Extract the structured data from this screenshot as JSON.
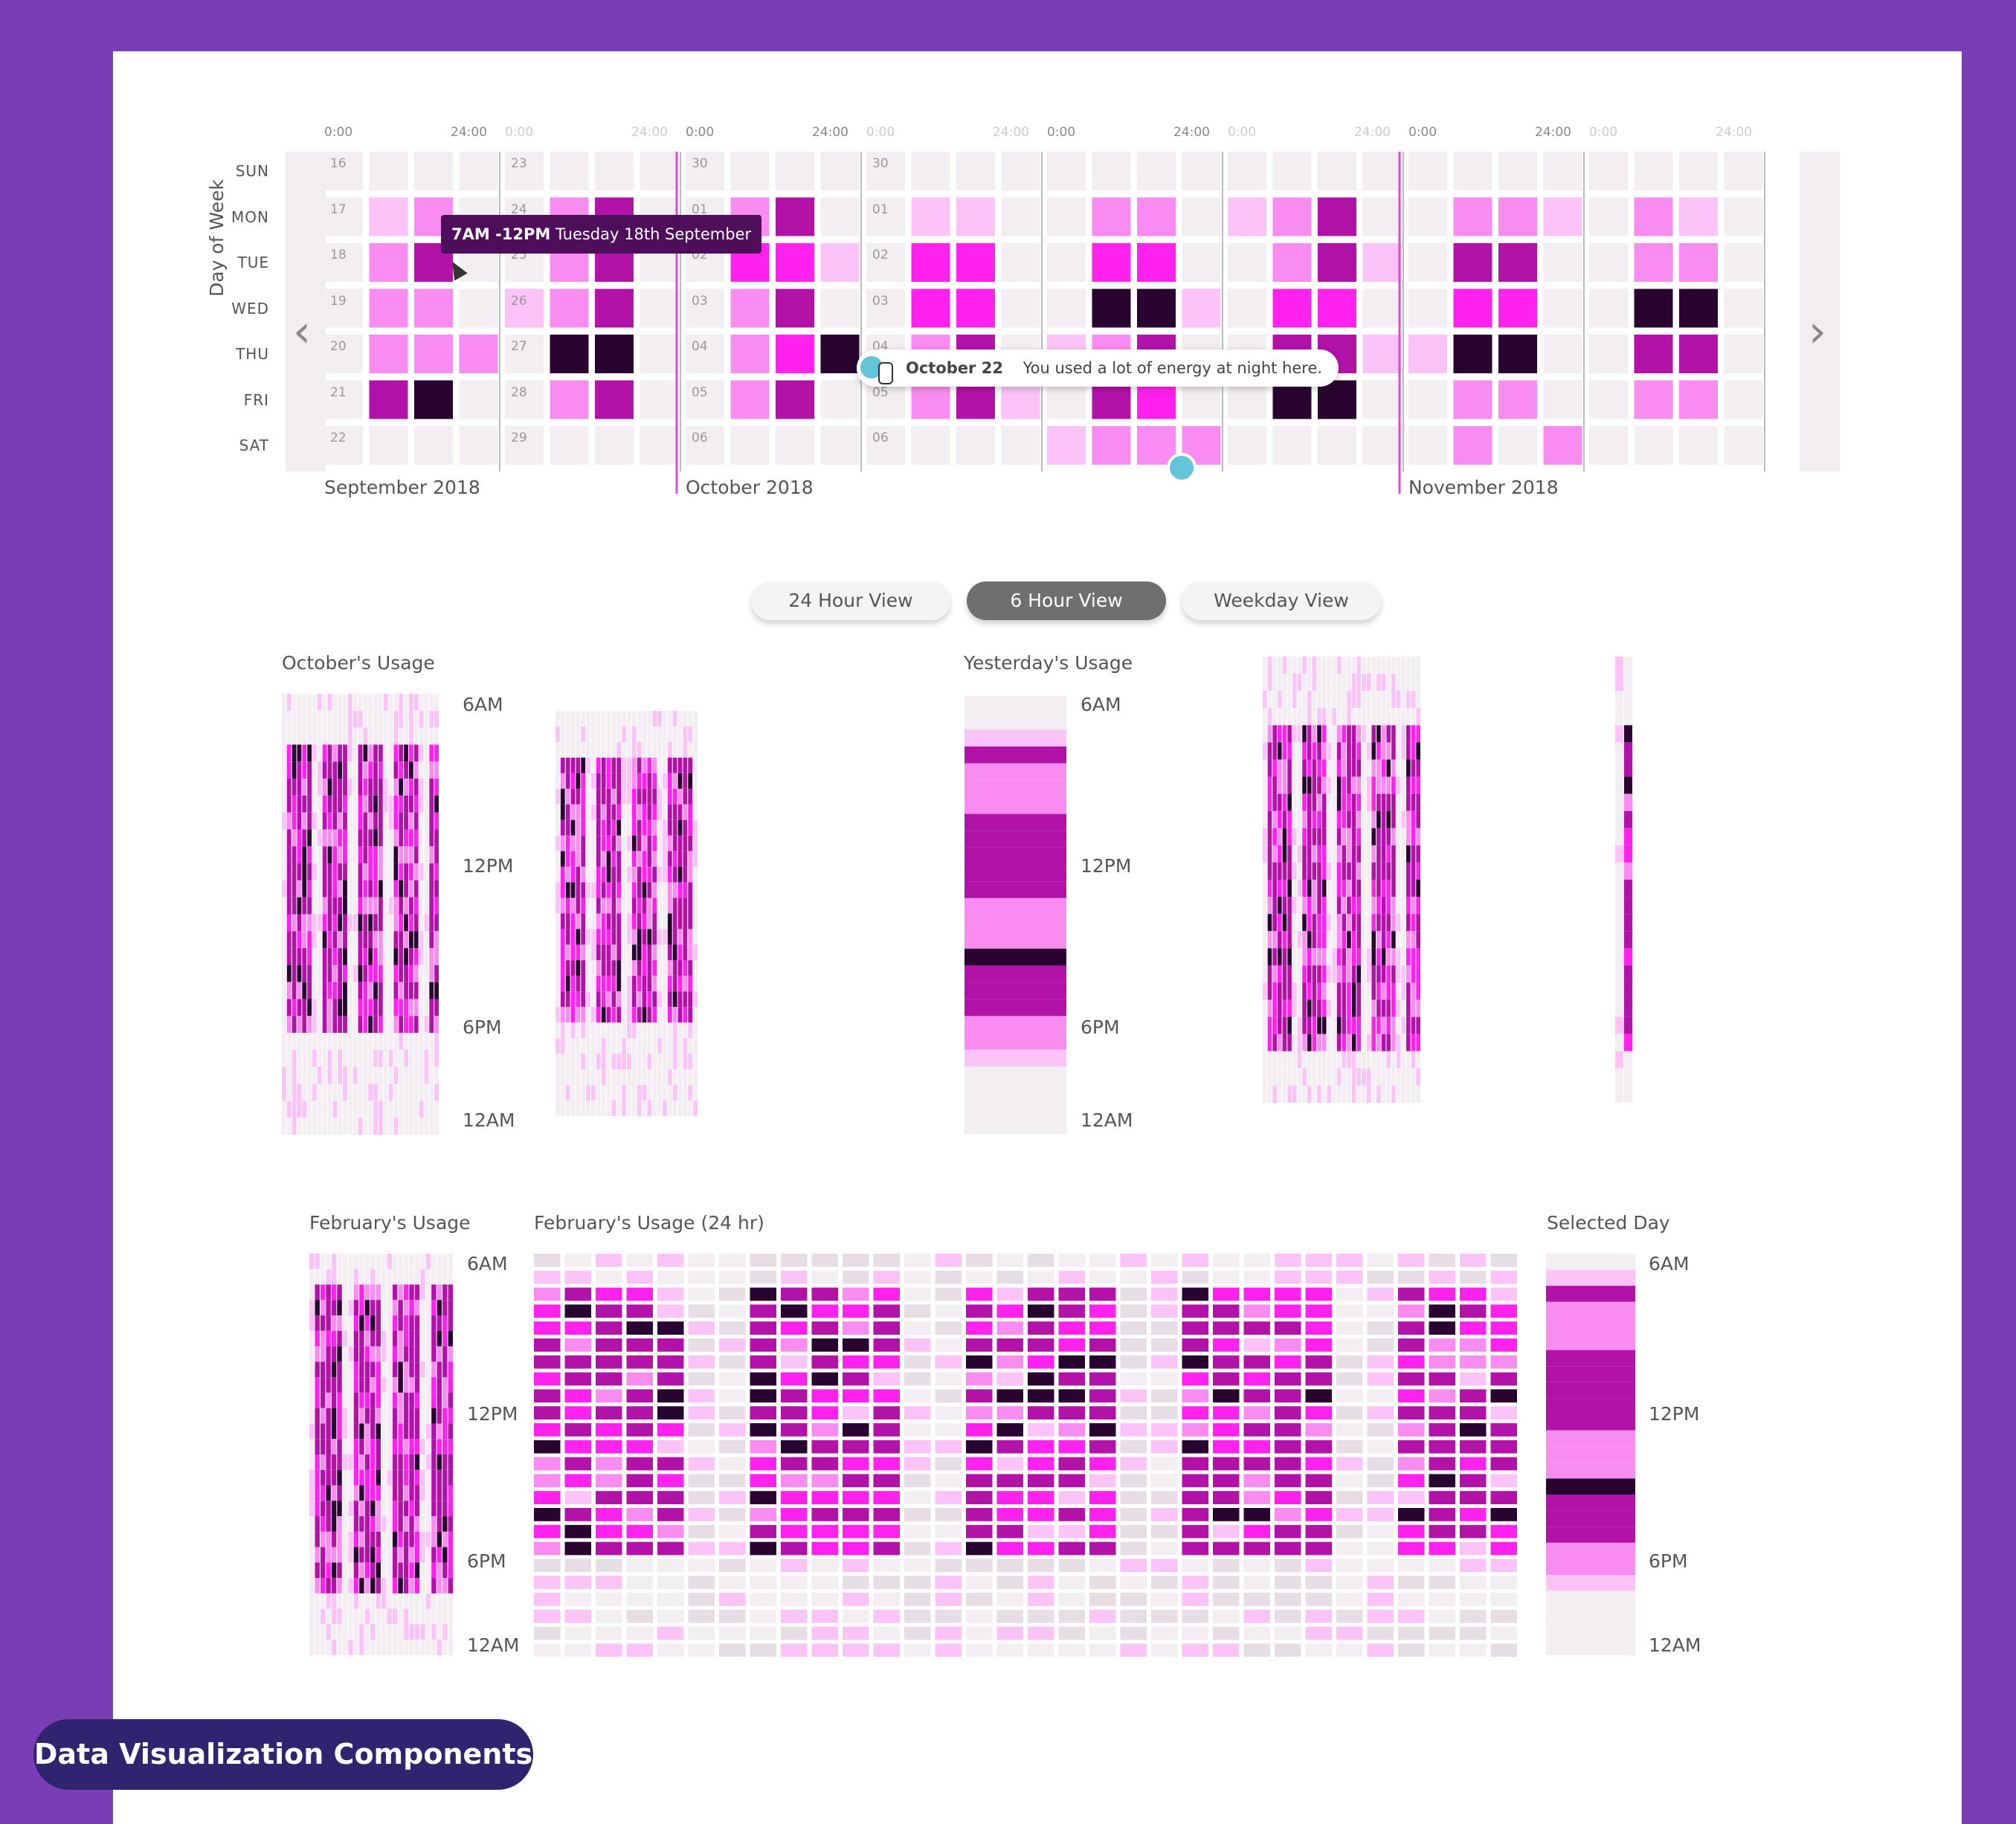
{
  "palette": {
    "frame": "#7a3db5",
    "level0": "#f3eef2",
    "level1": "#fbc3f8",
    "level2": "#f98cf0",
    "level3": "#ff22ee",
    "level4": "#b312a8",
    "level5": "#2a0430",
    "marker": "#63c6d8",
    "tooltip_bg": "#4e0e5a"
  },
  "calendar": {
    "y_axis_label": "Day of Week",
    "weekdays": [
      "SUN",
      "MON",
      "TUE",
      "WED",
      "THU",
      "FRI",
      "SAT"
    ],
    "hour_start": "0:00",
    "hour_end": "24:00",
    "months": [
      {
        "label": "September 2018",
        "weeks": [
          {
            "dates": [
              "16",
              "17",
              "18",
              "19",
              "20",
              "21",
              "22"
            ],
            "levels": [
              [
                0,
                0,
                0,
                0
              ],
              [
                0,
                1,
                2,
                0
              ],
              [
                0,
                2,
                4,
                0
              ],
              [
                0,
                2,
                2,
                0
              ],
              [
                0,
                2,
                2,
                2
              ],
              [
                0,
                4,
                5,
                0
              ],
              [
                0,
                0,
                0,
                0
              ]
            ]
          },
          {
            "dates": [
              "23",
              "24",
              "25",
              "26",
              "27",
              "28",
              "29"
            ],
            "levels": [
              [
                0,
                0,
                0,
                0
              ],
              [
                0,
                2,
                4,
                0
              ],
              [
                0,
                2,
                4,
                0
              ],
              [
                1,
                2,
                4,
                0
              ],
              [
                0,
                5,
                5,
                0
              ],
              [
                0,
                2,
                4,
                0
              ],
              [
                0,
                0,
                0,
                0
              ]
            ]
          }
        ]
      },
      {
        "label": "October 2018",
        "weeks": [
          {
            "dates": [
              "30",
              "01",
              "02",
              "03",
              "04",
              "05",
              "06"
            ],
            "levels": [
              [
                0,
                0,
                0,
                0
              ],
              [
                0,
                2,
                4,
                0
              ],
              [
                0,
                3,
                3,
                1
              ],
              [
                0,
                2,
                4,
                0
              ],
              [
                0,
                2,
                3,
                5
              ],
              [
                0,
                2,
                4,
                0
              ],
              [
                0,
                0,
                0,
                0
              ]
            ]
          },
          {
            "dates": [
              "30",
              "01",
              "02",
              "03",
              "04",
              "05",
              "06"
            ],
            "levels": [
              [
                0,
                0,
                0,
                0
              ],
              [
                0,
                1,
                1,
                0
              ],
              [
                0,
                3,
                3,
                0
              ],
              [
                0,
                3,
                3,
                0
              ],
              [
                0,
                2,
                4,
                0
              ],
              [
                0,
                2,
                4,
                1
              ],
              [
                0,
                0,
                0,
                0
              ]
            ]
          },
          {
            "dates": [
              "",
              "",
              "",
              "",
              "",
              "",
              ""
            ],
            "levels": [
              [
                0,
                0,
                0,
                0
              ],
              [
                0,
                2,
                2,
                0
              ],
              [
                0,
                3,
                3,
                0
              ],
              [
                0,
                5,
                5,
                1
              ],
              [
                1,
                2,
                4,
                0
              ],
              [
                0,
                4,
                3,
                0
              ],
              [
                1,
                2,
                2,
                2
              ]
            ]
          },
          {
            "dates": [
              "",
              "",
              "",
              "",
              "",
              "",
              ""
            ],
            "levels": [
              [
                0,
                0,
                0,
                0
              ],
              [
                1,
                2,
                4,
                0
              ],
              [
                0,
                2,
                4,
                1
              ],
              [
                0,
                3,
                3,
                0
              ],
              [
                0,
                4,
                4,
                1
              ],
              [
                0,
                5,
                5,
                0
              ],
              [
                0,
                0,
                0,
                0
              ]
            ]
          }
        ]
      },
      {
        "label": "November 2018",
        "weeks": [
          {
            "dates": [
              "",
              "",
              "",
              "",
              "",
              "",
              ""
            ],
            "levels": [
              [
                0,
                0,
                0,
                0
              ],
              [
                0,
                2,
                2,
                1
              ],
              [
                0,
                4,
                4,
                0
              ],
              [
                0,
                3,
                3,
                0
              ],
              [
                1,
                5,
                5,
                0
              ],
              [
                0,
                2,
                2,
                0
              ],
              [
                0,
                2,
                0,
                2
              ]
            ]
          },
          {
            "dates": [
              "",
              "",
              "",
              "",
              "",
              "",
              ""
            ],
            "levels": [
              [
                0,
                0,
                0,
                0
              ],
              [
                0,
                2,
                1,
                0
              ],
              [
                0,
                2,
                2,
                0
              ],
              [
                0,
                5,
                5,
                0
              ],
              [
                0,
                4,
                4,
                0
              ],
              [
                0,
                2,
                2,
                0
              ],
              [
                0,
                0,
                0,
                0
              ]
            ]
          }
        ]
      }
    ],
    "tooltip": {
      "time": "7AM -12PM",
      "text": "Tuesday 18th September"
    },
    "annotation": {
      "date": "October 22",
      "text": "You used a lot of energy at night here."
    }
  },
  "view_buttons": [
    {
      "label": "24 Hour View",
      "active": false
    },
    {
      "label": "6 Hour View",
      "active": true
    },
    {
      "label": "Weekday View",
      "active": false
    }
  ],
  "time_labels": [
    "6AM",
    "12PM",
    "6PM",
    "12AM"
  ],
  "panels": {
    "october": {
      "title": "October's Usage"
    },
    "yesterday": {
      "title": "Yesterday's Usage",
      "bands": [
        0,
        0,
        1,
        4,
        2,
        2,
        2,
        4,
        4,
        4,
        4,
        4,
        2,
        2,
        2,
        5,
        4,
        4,
        4,
        2,
        2,
        1,
        0,
        0,
        0,
        0
      ]
    },
    "february": {
      "title": "February's Usage"
    },
    "february24": {
      "title": "February's Usage (24 hr)"
    },
    "selected": {
      "title": "Selected Day",
      "bands": [
        0,
        1,
        4,
        2,
        2,
        2,
        4,
        4,
        4,
        4,
        4,
        2,
        2,
        2,
        5,
        4,
        4,
        4,
        2,
        2,
        1,
        0,
        0,
        0,
        0
      ]
    }
  },
  "footer_badge": "Data Visualization Components"
}
